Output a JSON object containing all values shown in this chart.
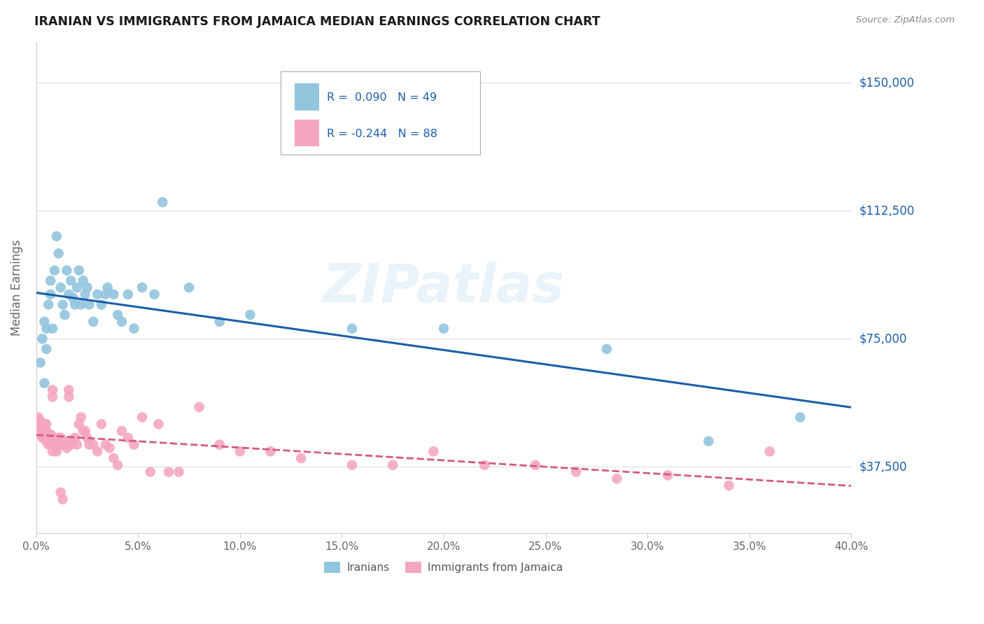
{
  "title": "IRANIAN VS IMMIGRANTS FROM JAMAICA MEDIAN EARNINGS CORRELATION CHART",
  "source": "Source: ZipAtlas.com",
  "ylabel": "Median Earnings",
  "yticks": [
    37500,
    75000,
    112500,
    150000
  ],
  "ytick_labels": [
    "$37,500",
    "$75,000",
    "$112,500",
    "$150,000"
  ],
  "xmin": 0.0,
  "xmax": 0.4,
  "ymin": 18000,
  "ymax": 162000,
  "blue_R": 0.09,
  "blue_N": 49,
  "pink_R": -0.244,
  "pink_N": 88,
  "blue_color": "#92c5de",
  "pink_color": "#f4a6c0",
  "blue_line_color": "#1a5ea8",
  "pink_line_color": "#d45b7a",
  "watermark": "ZIPatlas",
  "legend_label1": "Iranians",
  "legend_label2": "Immigrants from Jamaica",
  "grid_color": "#dddddd",
  "spine_color": "#cccccc"
}
